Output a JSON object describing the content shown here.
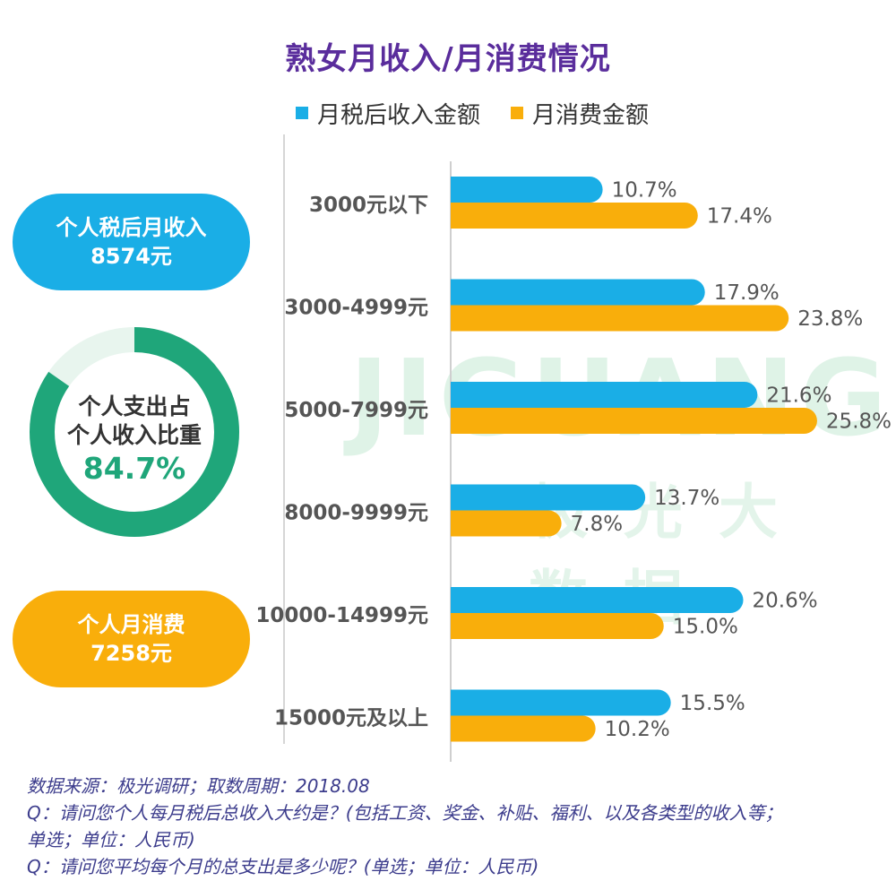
{
  "title": "熟女月收入/月消费情况",
  "legend": {
    "income_label": "月税后收入金额",
    "expense_label": "月消费金额"
  },
  "colors": {
    "income": "#1aaee6",
    "expense": "#f9ae0b",
    "ratio": "#1fa67a",
    "title": "#5a2d9c"
  },
  "income_card": {
    "label": "个人税后月收入",
    "value": "8574元"
  },
  "ratio_card": {
    "line1": "个人支出占",
    "line2": "个人收入比重",
    "value": "84.7%",
    "fraction": 0.847
  },
  "expense_card": {
    "label": "个人月消费",
    "value": "7258元"
  },
  "watermark": {
    "brand": "JIGUANG",
    "name": "极光大数据"
  },
  "chart_data": {
    "type": "bar",
    "orientation": "horizontal",
    "categories": [
      "3000元以下",
      "3000-4999元",
      "5000-7999元",
      "8000-9999元",
      "10000-14999元",
      "15000元及以上"
    ],
    "series": [
      {
        "name": "月税后收入金额",
        "values": [
          10.7,
          17.9,
          21.6,
          13.7,
          20.6,
          15.5
        ],
        "labels": [
          "10.7%",
          "17.9%",
          "21.6%",
          "13.7%",
          "20.6%",
          "15.5%"
        ]
      },
      {
        "name": "月消费金额",
        "values": [
          17.4,
          23.8,
          25.8,
          7.8,
          15.0,
          10.2
        ],
        "labels": [
          "17.4%",
          "23.8%",
          "25.8%",
          "7.8%",
          "15.0%",
          "10.2%"
        ]
      }
    ],
    "unit": "%",
    "grid": false,
    "legend_position": "top"
  },
  "source": {
    "line1": "数据来源：极光调研；取数周期：2018.08",
    "line2": "Q：请问您个人每月税后总收入大约是？(包括工资、奖金、补贴、福利、以及各类型的收入等；",
    "line3": "单选；单位：人民币)",
    "line4": "Q：请问您平均每个月的总支出是多少呢？(单选；单位：人民币)"
  }
}
